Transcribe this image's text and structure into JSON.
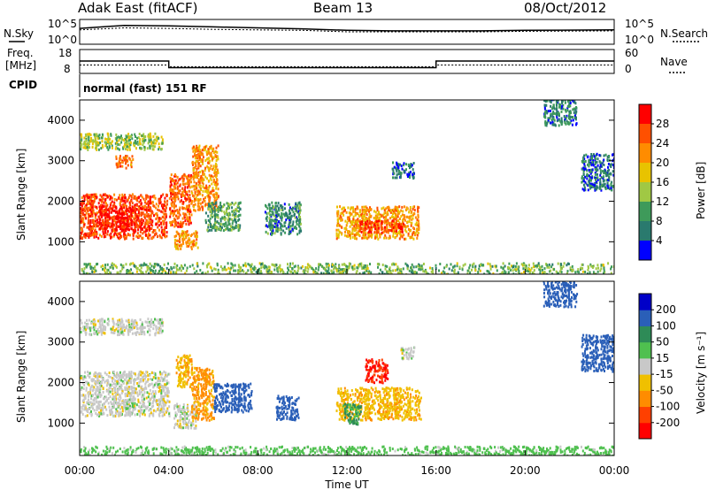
{
  "header": {
    "station": "Adak East (fitACF)",
    "beam": "Beam 13",
    "date": "08/Oct/2012"
  },
  "side_labels": {
    "nsky": "N.Sky",
    "nsearch": "N.Search",
    "freq_l1": "Freq.",
    "freq_l2": "[MHz]",
    "nave": "Nave",
    "cpid": "CPID",
    "cpid_value": "normal (fast) 151 RF"
  },
  "chart_data": [
    {
      "type": "line",
      "name": "noise",
      "series": [
        {
          "name": "N.Sky",
          "note": "solid",
          "values": [
            3.2,
            3.8,
            3.7,
            3.5,
            3.3,
            3.1,
            2.8,
            2.7,
            2.7,
            2.7,
            2.8,
            2.9
          ]
        },
        {
          "name": "N.Search",
          "note": "dotted",
          "values": [
            2.9,
            3.3,
            3.2,
            3.0,
            2.9,
            2.8,
            2.5,
            2.5,
            2.5,
            2.5,
            2.6,
            2.7
          ]
        }
      ],
      "x": [
        0,
        2,
        4,
        6,
        8,
        10,
        12,
        14,
        16,
        18,
        20,
        24
      ],
      "ylim": [
        0,
        5
      ],
      "y_tick_labels": [
        "10^5",
        "10^0"
      ]
    },
    {
      "type": "line",
      "name": "frequency",
      "y_left_ticks": [
        "18",
        "8"
      ],
      "y_right_ticks": [
        "60",
        "0"
      ],
      "series": [
        {
          "name": "Freq. [MHz]",
          "note": "solid",
          "points": [
            [
              0,
              13.2
            ],
            [
              4,
              13.2
            ],
            [
              4,
              10.4
            ],
            [
              16,
              10.4
            ],
            [
              16,
              13.2
            ],
            [
              24,
              13.2
            ]
          ]
        },
        {
          "name": "Nave",
          "note": "dotted",
          "points": [
            [
              0,
              11.5
            ],
            [
              4,
              11.5
            ],
            [
              4,
              10.8
            ],
            [
              16,
              10.8
            ],
            [
              16,
              11.5
            ],
            [
              24,
              11.5
            ]
          ]
        }
      ],
      "ylim": [
        8,
        18
      ]
    },
    {
      "type": "heatmap",
      "name": "power",
      "ylabel": "Slant Range [km]",
      "yticks": [
        1000,
        2000,
        3000,
        4000
      ],
      "ylim": [
        200,
        4500
      ],
      "colorbar": {
        "label": "Power [dB]",
        "ticks": [
          "4",
          "8",
          "12",
          "16",
          "20",
          "24",
          "28"
        ],
        "colors": [
          "#0000ff",
          "#2a7a6e",
          "#3e9a5a",
          "#a0c844",
          "#e8c300",
          "#ff8c00",
          "#ff5000",
          "#ff0000"
        ]
      },
      "regions": [
        {
          "t": [
            0.0,
            3.9
          ],
          "r": [
            1100,
            2200
          ],
          "value": 27
        },
        {
          "t": [
            0.8,
            2.8
          ],
          "r": [
            1300,
            1900
          ],
          "value": 30
        },
        {
          "t": [
            0.0,
            3.7
          ],
          "r": [
            3300,
            3700
          ],
          "value": 14
        },
        {
          "t": [
            1.6,
            2.4
          ],
          "r": [
            2850,
            3150
          ],
          "value": 24
        },
        {
          "t": [
            4.0,
            5.0
          ],
          "r": [
            1400,
            2700
          ],
          "value": 25
        },
        {
          "t": [
            4.2,
            5.3
          ],
          "r": [
            850,
            1300
          ],
          "value": 22
        },
        {
          "t": [
            5.0,
            6.2
          ],
          "r": [
            1800,
            3400
          ],
          "value": 22
        },
        {
          "t": [
            5.6,
            7.2
          ],
          "r": [
            1300,
            2000
          ],
          "value": 10
        },
        {
          "t": [
            8.3,
            9.9
          ],
          "r": [
            1200,
            2000
          ],
          "value": 8
        },
        {
          "t": [
            11.5,
            15.2
          ],
          "r": [
            1100,
            1900
          ],
          "value": 21
        },
        {
          "t": [
            12.5,
            14.5
          ],
          "r": [
            1250,
            1550
          ],
          "value": 27
        },
        {
          "t": [
            14.0,
            15.0
          ],
          "r": [
            2600,
            3000
          ],
          "value": 5
        },
        {
          "t": [
            20.8,
            22.3
          ],
          "r": [
            3900,
            4600
          ],
          "value": 7
        },
        {
          "t": [
            22.5,
            24.0
          ],
          "r": [
            2300,
            3200
          ],
          "value": 6
        },
        {
          "t": [
            0.0,
            24.0
          ],
          "r": [
            200,
            500
          ],
          "value": 12
        }
      ]
    },
    {
      "type": "heatmap",
      "name": "velocity",
      "ylabel": "Slant Range [km]",
      "yticks": [
        1000,
        2000,
        3000,
        4000
      ],
      "ylim": [
        200,
        4500
      ],
      "colorbar": {
        "label": "Velocity [m s⁻¹]",
        "ticks": [
          "200",
          "100",
          "50",
          "15",
          "-15",
          "-50",
          "-100",
          "-200"
        ],
        "colors": [
          "#0000c8",
          "#2a5fb8",
          "#2e8b57",
          "#4fc04f",
          "#c8c8c8",
          "#f0c000",
          "#ff8c00",
          "#ff4000",
          "#ff0000"
        ]
      },
      "regions": [
        {
          "t": [
            0.0,
            4.0
          ],
          "r": [
            1200,
            2300
          ],
          "value": 0
        },
        {
          "t": [
            0.0,
            3.7
          ],
          "r": [
            3200,
            3600
          ],
          "value": 0
        },
        {
          "t": [
            4.2,
            5.2
          ],
          "r": [
            900,
            1500
          ],
          "value": 0
        },
        {
          "t": [
            4.3,
            5.0
          ],
          "r": [
            1900,
            2700
          ],
          "value": -40
        },
        {
          "t": [
            5.0,
            6.0
          ],
          "r": [
            1100,
            2400
          ],
          "value": -60
        },
        {
          "t": [
            6.0,
            7.7
          ],
          "r": [
            1300,
            2000
          ],
          "value": 180
        },
        {
          "t": [
            8.8,
            9.8
          ],
          "r": [
            1100,
            1700
          ],
          "value": 180
        },
        {
          "t": [
            11.5,
            15.3
          ],
          "r": [
            1100,
            1900
          ],
          "value": -40
        },
        {
          "t": [
            11.8,
            12.6
          ],
          "r": [
            1000,
            1500
          ],
          "value": 60
        },
        {
          "t": [
            12.8,
            13.8
          ],
          "r": [
            2000,
            2600
          ],
          "value": -200
        },
        {
          "t": [
            14.4,
            15.0
          ],
          "r": [
            2600,
            2900
          ],
          "value": 0
        },
        {
          "t": [
            20.8,
            22.3
          ],
          "r": [
            3900,
            4600
          ],
          "value": 150
        },
        {
          "t": [
            22.5,
            24.0
          ],
          "r": [
            2300,
            3200
          ],
          "value": 150
        },
        {
          "t": [
            0.0,
            24.0
          ],
          "r": [
            200,
            450
          ],
          "value": 30
        }
      ]
    }
  ],
  "xaxis": {
    "label": "Time UT",
    "ticks": [
      "00:00",
      "04:00",
      "08:00",
      "12:00",
      "16:00",
      "20:00",
      "00:00"
    ]
  }
}
